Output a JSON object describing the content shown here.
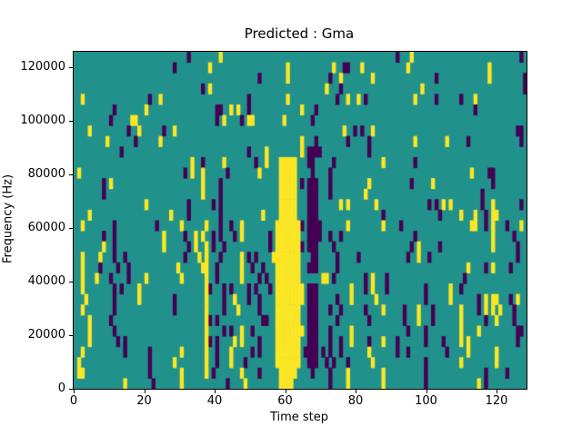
{
  "figure": {
    "background_color": "#ffffff",
    "text_color": "#000000"
  },
  "chart_data": {
    "type": "heatmap",
    "title": "Predicted : Gma",
    "xlabel": "Time step",
    "ylabel": "Frequency (Hz)",
    "x_ticks": [
      0,
      20,
      40,
      60,
      80,
      100,
      120
    ],
    "y_ticks": [
      0,
      20000,
      40000,
      60000,
      80000,
      100000,
      120000
    ],
    "xlim": [
      0,
      128.5
    ],
    "ylim": [
      0,
      125600
    ],
    "n_cols": 128,
    "n_rows": 32,
    "colormap": "viridis",
    "colors": {
      "mid_value": "#21918c",
      "low_value": "#440154",
      "high_value": "#fde725"
    },
    "legend": "none",
    "grid_on": false,
    "grid_note": "Sparse cell map. rows[0] = top frequency band (~125 kHz), rows[31] = bottom band (0 Hz). Each row lists column indices (time steps 0-127) of p = purple (low) cells and y = yellow (high) cells; all other cells are teal (mid). Salient features: tall yellow band at t=57-63 spanning ~2-86 kHz, dark purple band at t=65-69 spanning ~8-90 kHz, narrow yellow column at t=36-37.",
    "rows": [
      {
        "p": [
          32,
          91,
          126
        ],
        "y": [
          41,
          95
        ]
      },
      {
        "p": [
          28,
          76,
          77
        ],
        "y": [
          38,
          60,
          73,
          81,
          94,
          117
        ]
      },
      {
        "p": [
          52,
          72,
          102,
          127
        ],
        "y": [
          60,
          75,
          84,
          117
        ]
      },
      {
        "p": [
          36,
          75,
          127
        ],
        "y": [
          38,
          71,
          98
        ]
      },
      {
        "p": [
          21,
          49,
          74,
          82,
          102,
          109
        ],
        "y": [
          2,
          24,
          60,
          77,
          80,
          96,
          113
        ]
      },
      {
        "p": [
          11,
          40,
          41,
          49,
          68,
          113
        ],
        "y": [
          20,
          44,
          46,
          64
        ]
      },
      {
        "p": [
          10,
          40,
          47,
          67
        ],
        "y": [
          16,
          17,
          42,
          49,
          50,
          59
        ]
      },
      {
        "p": [
          15,
          25,
          79,
          81,
          125,
          126
        ],
        "y": [
          4,
          18,
          28,
          76,
          84
        ]
      },
      {
        "p": [
          17,
          68,
          77,
          83,
          111,
          126
        ],
        "y": [
          9,
          24,
          64,
          96,
          105
        ]
      },
      {
        "p": [
          13,
          49,
          66,
          67,
          68,
          69,
          83
        ],
        "y": [
          54,
          64
        ]
      },
      {
        "p": [
          36,
          51,
          66,
          67,
          73,
          96
        ],
        "y": [
          33,
          42,
          54,
          58,
          59,
          60,
          61,
          62,
          87
        ]
      },
      {
        "p": [
          31,
          43,
          67,
          72,
          117,
          118
        ],
        "y": [
          1,
          33,
          36,
          52,
          58,
          59,
          60,
          61,
          62,
          112
        ]
      },
      {
        "p": [
          8,
          41,
          64,
          66,
          67,
          68,
          72,
          95,
          118
        ],
        "y": [
          10,
          36,
          58,
          59,
          60,
          61,
          62,
          83,
          101
        ]
      },
      {
        "p": [
          8,
          41,
          66,
          67,
          68,
          72,
          115
        ],
        "y": [
          36,
          58,
          59,
          60,
          61,
          62,
          82
        ]
      },
      {
        "p": [
          32,
          39,
          41,
          66,
          67,
          68,
          100,
          102,
          115,
          126
        ],
        "y": [
          20,
          58,
          59,
          60,
          61,
          62,
          75,
          77,
          85,
          104,
          106,
          118
        ]
      },
      {
        "p": [
          32,
          41,
          66,
          67,
          68,
          87,
          103,
          116
        ],
        "y": [
          4,
          27,
          53,
          58,
          59,
          60,
          61,
          62,
          109,
          113,
          118,
          119
        ]
      },
      {
        "p": [
          11,
          23,
          41,
          44,
          64,
          66,
          67,
          68,
          69,
          92,
          116,
          122
        ],
        "y": [
          2,
          30,
          37,
          47,
          57,
          58,
          59,
          60,
          61,
          62,
          63,
          77,
          87,
          112,
          113,
          118,
          126
        ]
      },
      {
        "p": [
          8,
          11,
          31,
          39,
          41,
          45,
          55,
          66,
          67,
          68,
          69,
          72,
          75,
          96,
          124
        ],
        "y": [
          25,
          34,
          36,
          47,
          57,
          58,
          59,
          60,
          61,
          62,
          63,
          118
        ]
      },
      {
        "p": [
          11,
          32,
          39,
          42,
          55,
          64,
          66,
          67,
          68,
          73,
          95,
          103,
          125
        ],
        "y": [
          8,
          25,
          34,
          37,
          57,
          58,
          59,
          60,
          61,
          62,
          63,
          97,
          118
        ]
      },
      {
        "p": [
          11,
          14,
          31,
          41,
          49,
          51,
          67,
          68,
          74,
          80,
          94,
          100,
          125
        ],
        "y": [
          2,
          7,
          35,
          37,
          47,
          56,
          57,
          58,
          59,
          60,
          61,
          62,
          63,
          97
        ]
      },
      {
        "p": [
          7,
          12,
          15,
          40,
          50,
          53,
          66,
          67,
          68,
          74,
          116,
          123
        ],
        "y": [
          2,
          29,
          36,
          37,
          47,
          57,
          58,
          59,
          60,
          61,
          62,
          63,
          111,
          118
        ]
      },
      {
        "p": [
          10,
          15,
          40,
          52,
          54,
          73,
          82,
          88,
          110
        ],
        "y": [
          2,
          6,
          20,
          30,
          37,
          47,
          57,
          58,
          59,
          60,
          61,
          62,
          63,
          70,
          71,
          84
        ]
      },
      {
        "p": [
          11,
          13,
          38,
          42,
          44,
          49,
          51,
          55,
          66,
          67,
          68,
          82,
          88,
          99,
          109
        ],
        "y": [
          2,
          18,
          37,
          57,
          58,
          59,
          60,
          61,
          62,
          63,
          64,
          78,
          84,
          106
        ]
      },
      {
        "p": [
          11,
          28,
          42,
          49,
          52,
          66,
          67,
          68,
          74,
          99,
          114,
          123
        ],
        "y": [
          3,
          18,
          37,
          45,
          57,
          58,
          59,
          60,
          61,
          62,
          63,
          64,
          78,
          85,
          106,
          116,
          118,
          119,
          125
        ]
      },
      {
        "p": [
          11,
          28,
          42,
          52,
          66,
          67,
          68,
          72,
          75,
          82,
          93,
          101,
          114,
          124
        ],
        "y": [
          2,
          37,
          46,
          57,
          58,
          59,
          60,
          61,
          62,
          63,
          87,
          97,
          109,
          116,
          118,
          120
        ]
      },
      {
        "p": [
          10,
          38,
          40,
          53,
          54,
          66,
          67,
          68,
          74,
          83,
          93,
          101,
          116,
          124
        ],
        "y": [
          4,
          37,
          57,
          58,
          59,
          60,
          61,
          62,
          63,
          97,
          109,
          119
        ]
      },
      {
        "p": [
          11,
          42,
          44,
          50,
          66,
          67,
          68,
          72,
          94,
          99,
          125,
          126
        ],
        "y": [
          4,
          37,
          47,
          57,
          58,
          59,
          60,
          61,
          62,
          63,
          64,
          78,
          109,
          114
        ]
      },
      {
        "p": [
          12,
          14,
          38,
          40,
          52,
          66,
          67,
          68,
          72,
          75,
          83,
          91,
          99,
          104,
          125
        ],
        "y": [
          4,
          37,
          45,
          47,
          57,
          58,
          59,
          60,
          61,
          62,
          63,
          78,
          87,
          109,
          111
        ]
      },
      {
        "p": [
          14,
          21,
          40,
          50,
          52,
          65,
          66,
          67,
          68,
          70,
          72,
          75,
          91,
          94,
          105
        ],
        "y": [
          2,
          30,
          37,
          44,
          57,
          58,
          59,
          60,
          61,
          62,
          63,
          83,
          111,
          119
        ]
      },
      {
        "p": [
          21,
          40,
          48,
          66,
          67,
          68,
          71,
          73,
          77,
          99
        ],
        "y": [
          1,
          28,
          37,
          44,
          57,
          58,
          59,
          60,
          61,
          62,
          63,
          84,
          109,
          119
        ]
      },
      {
        "p": [
          21,
          39,
          52,
          67,
          72,
          99,
          116,
          122
        ],
        "y": [
          1,
          2,
          30,
          37,
          47,
          58,
          59,
          60,
          61,
          62,
          77,
          87
        ]
      },
      {
        "p": [
          22,
          43,
          72,
          99,
          116
        ],
        "y": [
          14,
          30,
          48,
          58,
          59,
          60,
          61,
          77,
          87,
          114
        ]
      }
    ]
  }
}
